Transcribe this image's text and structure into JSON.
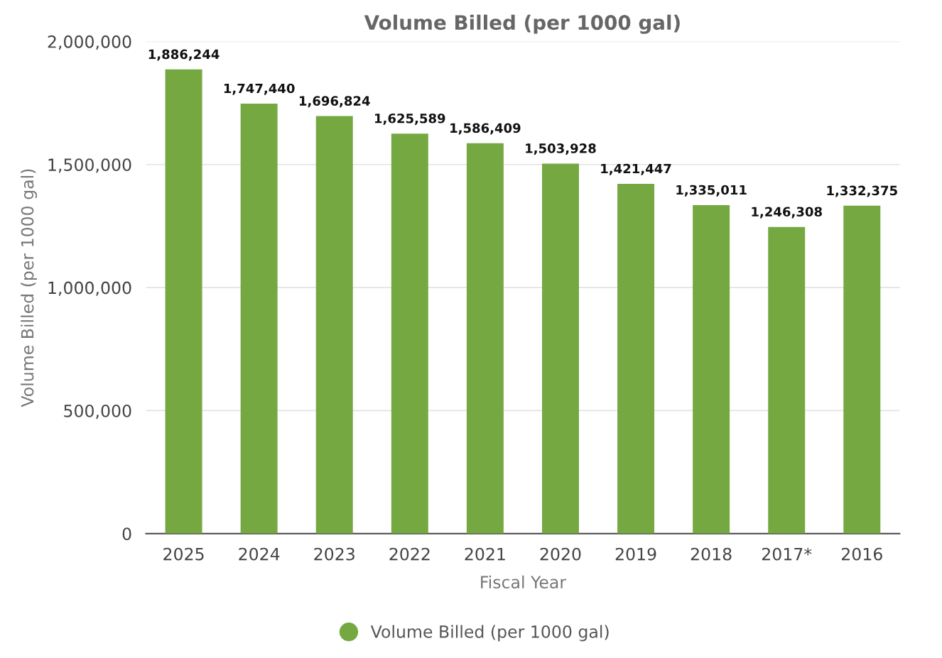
{
  "chart_data": {
    "type": "bar",
    "title": "Volume Billed (per 1000 gal)",
    "xlabel": "Fiscal Year",
    "ylabel": "Volume Billed (per 1000 gal)",
    "categories": [
      "2025",
      "2024",
      "2023",
      "2022",
      "2021",
      "2020",
      "2019",
      "2018",
      "2017*",
      "2016"
    ],
    "series": [
      {
        "name": "Volume Billed (per 1000 gal)",
        "color": "#76a842",
        "values": [
          1886244,
          1747440,
          1696824,
          1625589,
          1586409,
          1503928,
          1421447,
          1335011,
          1246308,
          1332375
        ],
        "value_labels": [
          "1,886,244",
          "1,747,440",
          "1,696,824",
          "1,625,589",
          "1,586,409",
          "1,503,928",
          "1,421,447",
          "1,335,011",
          "1,246,308",
          "1,332,375"
        ]
      }
    ],
    "ylim": [
      0,
      2000000
    ],
    "yticks": [
      {
        "value": 0,
        "label": "0"
      },
      {
        "value": 500000,
        "label": "500,000"
      },
      {
        "value": 1000000,
        "label": "1,000,000"
      },
      {
        "value": 1500000,
        "label": "1,500,000"
      },
      {
        "value": 2000000,
        "label": "2,000,000"
      }
    ],
    "grid": "y",
    "legend": "bottom"
  }
}
